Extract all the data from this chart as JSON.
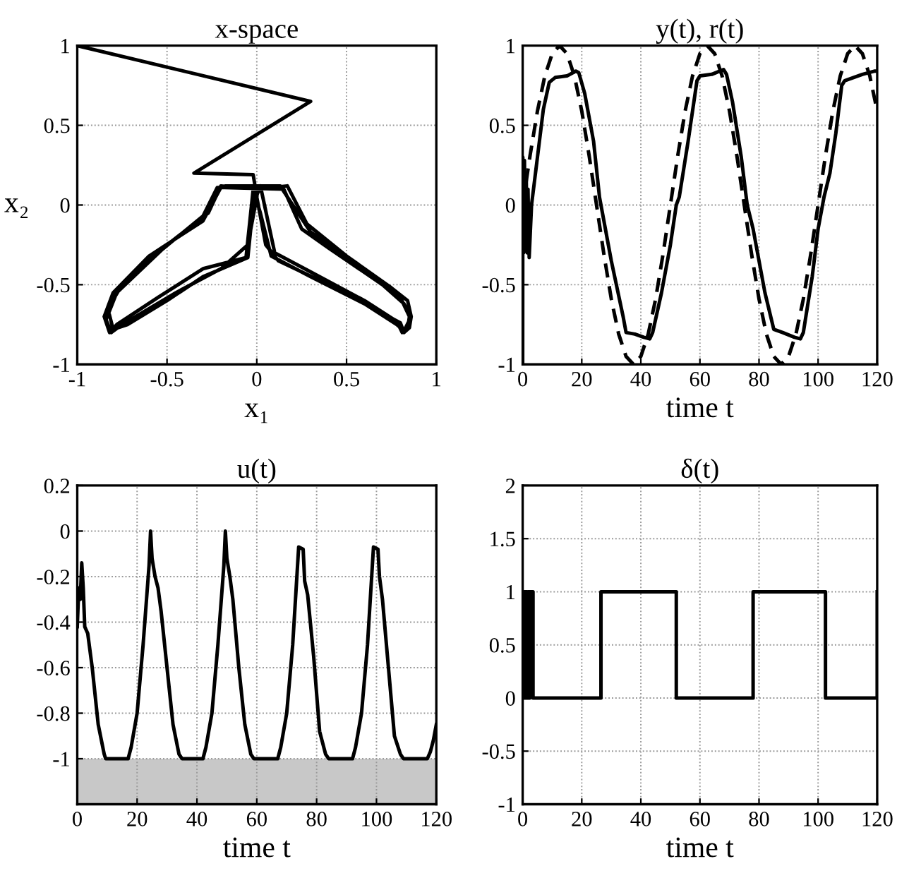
{
  "chart_data": [
    {
      "type": "line",
      "title": "x-space",
      "xlabel": "x₁",
      "ylabel": "x₂",
      "xlim": [
        -1,
        1
      ],
      "ylim": [
        -1,
        1
      ],
      "xticks": [
        -1,
        -0.5,
        0,
        0.5,
        1
      ],
      "yticks": [
        -1,
        -0.5,
        0,
        0.5,
        1
      ],
      "grid": true,
      "legend": false,
      "series": [
        {
          "color": "#000000",
          "line_style": "solid",
          "x": [
            -1,
            0.3,
            -0.35,
            -0.02,
            0.0,
            0.05,
            0.12,
            0.4,
            0.7,
            0.8,
            0.82,
            0.85,
            0.86,
            0.82,
            0.7,
            0.4,
            0.25,
            0.15,
            -0.18,
            -0.22,
            -0.3,
            -0.55,
            -0.75,
            -0.83,
            -0.8,
            -0.72,
            -0.5,
            -0.3,
            -0.05,
            -0.02,
            0.02,
            0.1,
            0.3,
            0.6,
            0.78,
            0.81,
            0.84,
            0.85,
            0.8,
            0.6,
            0.3,
            0.2,
            0.13,
            -0.17,
            -0.2,
            -0.3,
            -0.6,
            -0.8,
            -0.85,
            -0.82,
            -0.78,
            -0.55,
            -0.3,
            -0.06,
            -0.02,
            0.02,
            0.08,
            0.3,
            0.6,
            0.78,
            0.82,
            0.86,
            0.84,
            0.75,
            0.5,
            0.28,
            0.17,
            0.0,
            -0.2,
            -0.27,
            -0.5,
            -0.78,
            -0.84,
            -0.81,
            -0.75,
            -0.45,
            -0.2,
            -0.05,
            0.0
          ],
          "values": [
            1,
            0.65,
            0.2,
            0.19,
            0.05,
            -0.25,
            -0.35,
            -0.5,
            -0.68,
            -0.74,
            -0.8,
            -0.77,
            -0.7,
            -0.62,
            -0.5,
            -0.27,
            -0.15,
            0.1,
            0.11,
            0.11,
            -0.07,
            -0.3,
            -0.5,
            -0.65,
            -0.78,
            -0.75,
            -0.6,
            -0.45,
            -0.33,
            0.0,
            0.12,
            -0.3,
            -0.42,
            -0.6,
            -0.73,
            -0.8,
            -0.78,
            -0.7,
            -0.58,
            -0.4,
            -0.17,
            0.0,
            0.12,
            0.12,
            0.11,
            -0.1,
            -0.32,
            -0.55,
            -0.7,
            -0.8,
            -0.75,
            -0.58,
            -0.4,
            -0.33,
            0.1,
            -0.05,
            -0.32,
            -0.45,
            -0.62,
            -0.75,
            -0.79,
            -0.7,
            -0.6,
            -0.52,
            -0.32,
            -0.12,
            0.12,
            0.1,
            0.12,
            -0.05,
            -0.25,
            -0.55,
            -0.72,
            -0.8,
            -0.75,
            -0.55,
            -0.4,
            -0.25,
            0.05
          ]
        }
      ]
    },
    {
      "type": "line",
      "title": "y(t), r(t)",
      "xlabel": "time t",
      "xlim": [
        0,
        120
      ],
      "ylim": [
        -1,
        1
      ],
      "xticks": [
        0,
        20,
        40,
        60,
        80,
        100,
        120
      ],
      "yticks": [
        -1,
        -0.5,
        0,
        0.5,
        1
      ],
      "grid": true,
      "legend": false,
      "series": [
        {
          "color": "#000000",
          "line_style": "solid",
          "x": [
            0,
            0.05,
            0.3,
            0.6,
            0.9,
            1.2,
            1.5,
            1.8,
            2.2,
            3,
            5,
            7,
            9,
            11,
            15,
            18,
            19,
            21,
            24,
            26,
            27,
            30,
            34,
            35,
            38,
            41,
            43,
            44,
            47,
            50,
            52,
            53,
            56,
            59,
            60,
            64,
            68,
            69,
            71,
            74,
            76,
            78,
            82,
            85,
            88,
            92,
            94,
            95,
            98,
            100,
            102,
            104,
            106,
            108,
            109,
            112,
            115,
            119,
            120
          ],
          "values": [
            -1,
            0.3,
            -0.3,
            0.28,
            -0.25,
            0.2,
            -0.3,
            0.1,
            -0.33,
            0.0,
            0.3,
            0.6,
            0.77,
            0.8,
            0.81,
            0.84,
            0.83,
            0.7,
            0.4,
            0.05,
            -0.05,
            -0.35,
            -0.7,
            -0.8,
            -0.81,
            -0.83,
            -0.84,
            -0.8,
            -0.55,
            -0.25,
            0.0,
            0.05,
            0.4,
            0.78,
            0.81,
            0.82,
            0.85,
            0.82,
            0.65,
            0.3,
            0.0,
            -0.15,
            -0.55,
            -0.78,
            -0.8,
            -0.83,
            -0.84,
            -0.8,
            -0.45,
            -0.15,
            0.05,
            0.2,
            0.45,
            0.75,
            0.78,
            0.8,
            0.82,
            0.84,
            0.84
          ]
        },
        {
          "color": "#000000",
          "line_style": "dashed",
          "x": [
            0,
            2.5,
            5,
            7.5,
            10,
            12.5,
            15,
            17.5,
            20,
            22.5,
            25,
            27.5,
            30,
            32.5,
            35,
            37.5,
            40,
            42.5,
            45,
            47.5,
            50,
            52.5,
            55,
            57.5,
            60,
            62.5,
            65,
            67.5,
            70,
            72.5,
            75,
            77.5,
            80,
            82.5,
            85,
            87.5,
            90,
            92.5,
            95,
            97.5,
            100,
            102.5,
            105,
            107.5,
            110,
            112.5,
            115,
            117.5,
            120
          ],
          "values": [
            0,
            0.31,
            0.59,
            0.81,
            0.95,
            1,
            0.95,
            0.81,
            0.59,
            0.31,
            0,
            -0.31,
            -0.59,
            -0.81,
            -0.95,
            -1,
            -0.95,
            -0.81,
            -0.59,
            -0.31,
            0,
            0.31,
            0.59,
            0.81,
            0.95,
            1,
            0.95,
            0.81,
            0.59,
            0.31,
            0,
            -0.31,
            -0.59,
            -0.81,
            -0.95,
            -1,
            -0.95,
            -0.81,
            -0.59,
            -0.31,
            0,
            0.31,
            0.59,
            0.81,
            0.95,
            1,
            0.95,
            0.81,
            0.59
          ]
        }
      ]
    },
    {
      "type": "line",
      "title": "u(t)",
      "xlabel": "time t",
      "xlim": [
        0,
        120
      ],
      "ylim": [
        -1.2,
        0.2
      ],
      "xticks": [
        0,
        20,
        40,
        60,
        80,
        100,
        120
      ],
      "yticks": [
        -1,
        -0.8,
        -0.6,
        -0.4,
        -0.2,
        0,
        0.2
      ],
      "grid": true,
      "legend": false,
      "bands": [
        {
          "axis": "y",
          "from": -1.2,
          "to": -1,
          "color": "#c8c8c8"
        }
      ],
      "series": [
        {
          "color": "#000000",
          "line_style": "solid",
          "x": [
            0,
            0.5,
            1,
            1.5,
            2,
            2.5,
            3.5,
            5,
            7,
            9,
            9.5,
            17,
            18,
            20,
            22,
            24,
            24.5,
            25,
            26,
            27,
            28,
            30,
            32,
            34,
            35,
            42,
            43,
            45,
            47,
            49,
            49.5,
            50,
            51,
            52,
            54,
            56,
            58,
            59,
            67,
            68,
            70,
            72,
            74,
            75.5,
            76,
            77,
            79,
            81,
            83,
            84,
            92,
            93,
            95,
            97,
            99,
            100.5,
            101,
            102,
            104,
            106,
            108,
            109,
            117,
            118,
            119,
            120
          ],
          "values": [
            -0.42,
            -0.25,
            -0.3,
            -0.14,
            -0.25,
            -0.42,
            -0.45,
            -0.6,
            -0.85,
            -0.98,
            -1,
            -1,
            -0.95,
            -0.8,
            -0.5,
            -0.15,
            0,
            -0.12,
            -0.2,
            -0.25,
            -0.35,
            -0.6,
            -0.85,
            -0.98,
            -1,
            -1,
            -0.95,
            -0.8,
            -0.5,
            -0.15,
            0,
            -0.12,
            -0.2,
            -0.3,
            -0.6,
            -0.85,
            -0.98,
            -1,
            -1,
            -0.95,
            -0.8,
            -0.5,
            -0.07,
            -0.08,
            -0.22,
            -0.28,
            -0.55,
            -0.88,
            -0.98,
            -1,
            -1,
            -0.95,
            -0.8,
            -0.5,
            -0.07,
            -0.08,
            -0.2,
            -0.3,
            -0.6,
            -0.9,
            -0.98,
            -1,
            -1,
            -0.97,
            -0.92,
            -0.85
          ]
        }
      ]
    },
    {
      "type": "step",
      "title": "δ(t)",
      "xlabel": "time t",
      "xlim": [
        0,
        120
      ],
      "ylim": [
        -1,
        2
      ],
      "xticks": [
        0,
        20,
        40,
        60,
        80,
        100,
        120
      ],
      "yticks": [
        -1,
        -0.5,
        0,
        0.5,
        1,
        1.5,
        2
      ],
      "grid": true,
      "legend": false,
      "series": [
        {
          "color": "#000000",
          "line_style": "solid",
          "x": [
            0,
            0.3,
            0.6,
            0.9,
            1.2,
            1.5,
            1.8,
            2.1,
            2.4,
            3.5,
            26.5,
            52,
            78,
            102.5,
            120
          ],
          "values": [
            1,
            0,
            1,
            0,
            1,
            0,
            1,
            0,
            1,
            0,
            1,
            0,
            1,
            0,
            1
          ]
        }
      ]
    }
  ]
}
